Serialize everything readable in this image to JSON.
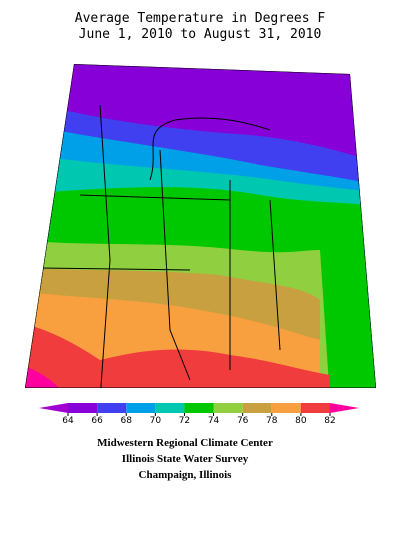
{
  "title": [
    "Average Temperature in Degrees F",
    "June 1, 2010 to August 31, 2010"
  ],
  "colorbar": {
    "ticks": [
      64,
      66,
      68,
      70,
      72,
      74,
      76,
      78,
      80,
      82
    ],
    "colors": [
      "#a000d0",
      "#8800d8",
      "#4040f0",
      "#00a0e8",
      "#00c8b0",
      "#00c800",
      "#90d040",
      "#c8a040",
      "#f8a040",
      "#f03c3c",
      "#ff00a0"
    ]
  },
  "footer": [
    "Midwestern Regional Climate Center",
    "Illinois State Water Survey",
    "Champaign, Illinois"
  ]
}
